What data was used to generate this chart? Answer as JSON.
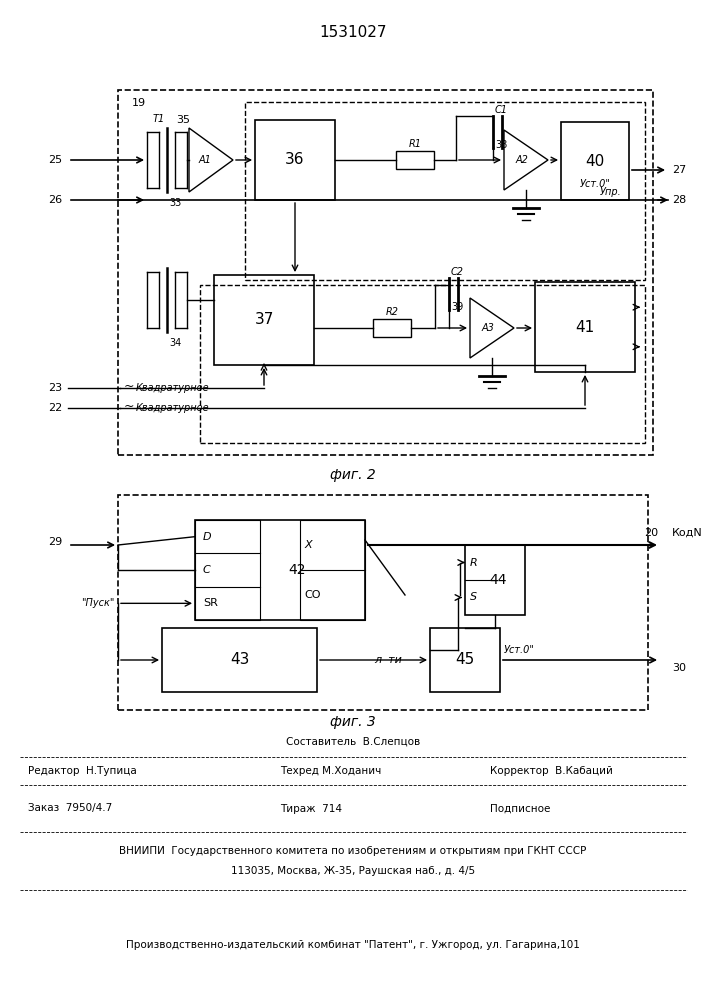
{
  "title": "1531027",
  "fig2_label": "фиг. 2",
  "fig3_label": "фиг. 3",
  "background": "#ffffff",
  "line_color": "#000000",
  "footer": {
    "sostavitel": "Составитель  В.Слепцов",
    "redaktor": "Редактор  Н.Тупица",
    "tehred": "Техред М.Ходанич",
    "korrektor": "Корректор  В.Кабаций",
    "zakaz": "Заказ  7950/4.7",
    "tirazh": "Тираж  714",
    "podpisnoe": "Подписное",
    "vniiipi": "ВНИИПИ  Государственного комитета по изобретениям и открытиям при ГКНТ СССР",
    "address": "113035, Москва, Ж-35, Раушская наб., д. 4/5",
    "kombinat": "Производственно-издательский комбинат \"Патент\", г. Ужгород, ул. Гагарина,101"
  }
}
